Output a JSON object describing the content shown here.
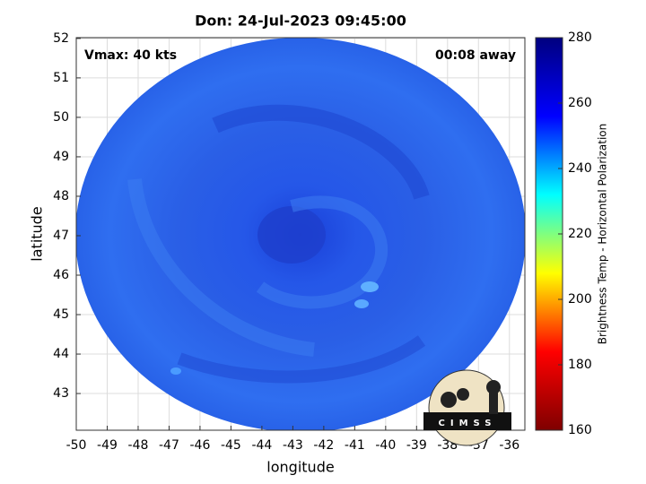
{
  "chart_data": {
    "type": "image",
    "title": "Don: 24-Jul-2023 09:45:00",
    "annotations": [
      "Vmax: 40 kts",
      "00:08 away"
    ],
    "x_label": "longitude",
    "y_label": "latitude",
    "xlim": [
      -50,
      -35.5
    ],
    "xticks": [
      -50,
      -49,
      -48,
      -47,
      -46,
      -45,
      -44,
      -43,
      -42,
      -41,
      -40,
      -39,
      -38,
      -37,
      -36
    ],
    "ylim": [
      42.07,
      52.02
    ],
    "yticks": [
      43,
      44,
      45,
      46,
      47,
      48,
      49,
      50,
      51,
      52
    ],
    "grid": true,
    "colorbar": {
      "label": "Brightness Temp - Horizontal Polarization",
      "lim": [
        160,
        280
      ],
      "ticks": [
        160,
        180,
        200,
        220,
        240,
        260,
        280
      ],
      "colors": [
        "#7f0000",
        "#ff0000",
        "#ffff00",
        "#00ffff",
        "#0000ff",
        "#00007f"
      ]
    },
    "logo": "CIMSS"
  }
}
